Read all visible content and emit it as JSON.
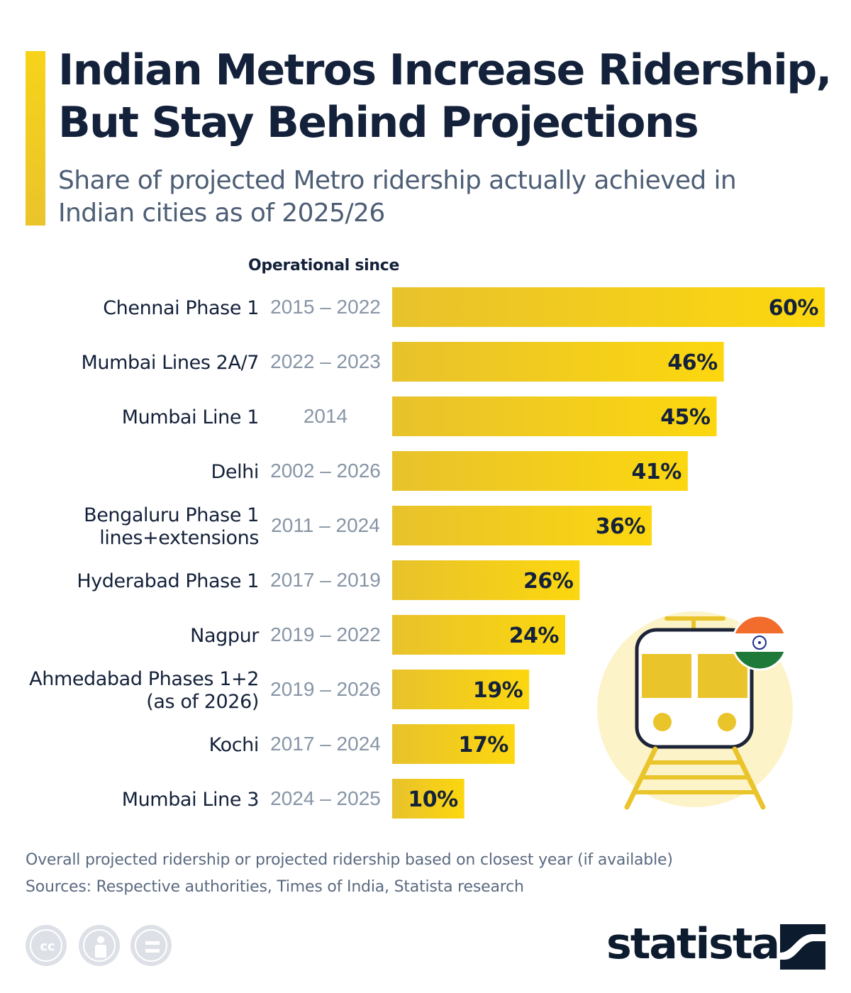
{
  "title": "Indian Metros Increase Ridership, But Stay Behind Projections",
  "subtitle": "Share of projected Metro ridership actually achieved in Indian cities as of 2025/26",
  "column_header": "Operational since",
  "footnote": "Overall projected ridership or projected ridership based on closest year (if available)",
  "sources": "Sources: Respective authorities, Times of India, Statista research",
  "brand": "statista",
  "colors": {
    "bar_light": "#e8c22c",
    "bar_bright": "#fcd70f",
    "text_dark": "#14213a",
    "text_grey": "#8795a6",
    "circle": "#fdf3c8",
    "train_outline": "#1d2437",
    "flag_saffron": "#f26d2b",
    "flag_green": "#1f7a3a",
    "flag_chakra": "#1a2f8c"
  },
  "icons": [
    "train-icon",
    "india-flag-icon",
    "cc-icon",
    "by-icon",
    "nd-icon",
    "statista-logo-icon"
  ],
  "chart_data": {
    "type": "bar",
    "orientation": "horizontal",
    "unit": "%",
    "xlim": [
      0,
      60
    ],
    "grid": false,
    "categories": [
      [
        "Chennai Phase 1"
      ],
      [
        "Mumbai Lines 2A/7"
      ],
      [
        "Mumbai Line 1"
      ],
      [
        "Delhi"
      ],
      [
        "Bengaluru Phase 1",
        "lines+extensions"
      ],
      [
        "Hyderabad Phase 1"
      ],
      [
        "Nagpur"
      ],
      [
        "Ahmedabad Phases 1+2",
        "(as of 2026)"
      ],
      [
        "Kochi"
      ],
      [
        "Mumbai Line 3"
      ]
    ],
    "operational_since": [
      "2015 2022",
      "2022 2023",
      "2014",
      "2002 2026",
      "2011 2024",
      "2017 2019",
      "2019 2022",
      "2019 2026",
      "2017 2024",
      "2024 2025"
    ],
    "operational_since_display": [
      "2015 – 2022",
      "2022 – 2023",
      "2014",
      "2002 – 2026",
      "2011 – 2024",
      "2017 – 2019",
      "2019 – 2022",
      "2019 – 2026",
      "2017 – 2024",
      "2024 – 2025"
    ],
    "values": [
      60,
      46,
      45,
      41,
      36,
      26,
      24,
      19,
      17,
      10
    ],
    "value_labels": [
      "60%",
      "46%",
      "45%",
      "41%",
      "36%",
      "26%",
      "24%",
      "19%",
      "17%",
      "10%"
    ]
  }
}
